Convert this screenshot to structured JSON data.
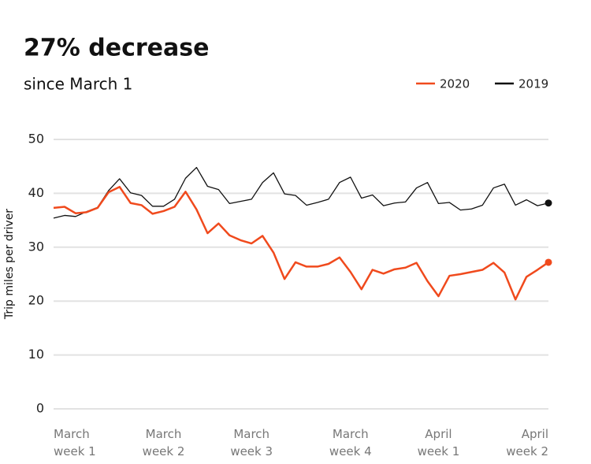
{
  "chart_data": {
    "type": "line",
    "title": "27% decrease",
    "subtitle": "since March 1",
    "y_label": "Trip miles per driver",
    "categories": [
      "March week 1",
      null,
      null,
      null,
      null,
      null,
      null,
      null,
      null,
      null,
      "March week 2",
      null,
      null,
      null,
      null,
      null,
      null,
      null,
      "March week 3",
      null,
      null,
      null,
      null,
      null,
      null,
      null,
      null,
      "March week 4",
      null,
      null,
      null,
      null,
      null,
      null,
      null,
      "April week 1",
      null,
      null,
      null,
      null,
      null,
      null,
      null,
      null,
      null,
      "April week 2"
    ],
    "series": [
      {
        "name": "2020",
        "color": "#f04a1d",
        "values": [
          37.3,
          37.5,
          36.3,
          36.5,
          37.3,
          40.2,
          41.2,
          38.2,
          37.8,
          36.2,
          36.7,
          37.5,
          40.3,
          37,
          32.6,
          34.4,
          32.2,
          31.3,
          30.7,
          32.1,
          29,
          24.1,
          27.2,
          26.4,
          26.4,
          26.9,
          28.1,
          25.4,
          22.2,
          25.8,
          25.1,
          25.9,
          26.2,
          27.1,
          23.7,
          20.9,
          24.7,
          25,
          25.4,
          25.8,
          27.1,
          25.3,
          20.3,
          24.5,
          25.8,
          27.2
        ]
      },
      {
        "name": "2019",
        "color": "#111111",
        "values": [
          35.4,
          35.9,
          35.7,
          36.6,
          37.4,
          40.5,
          42.7,
          40.1,
          39.6,
          37.6,
          37.6,
          38.9,
          42.8,
          44.8,
          41.3,
          40.7,
          38.1,
          38.5,
          38.9,
          42,
          43.8,
          39.9,
          39.6,
          37.8,
          38.3,
          38.9,
          42,
          43,
          39.1,
          39.7,
          37.7,
          38.2,
          38.4,
          41,
          42,
          38.1,
          38.3,
          36.9,
          37.1,
          37.8,
          41,
          41.7,
          37.8,
          38.8,
          37.7,
          38.2
        ]
      }
    ],
    "ylim": [
      0,
      50
    ],
    "yticks": [
      0,
      10,
      20,
      30,
      40,
      50
    ],
    "grid": true,
    "legend": "top-right"
  }
}
